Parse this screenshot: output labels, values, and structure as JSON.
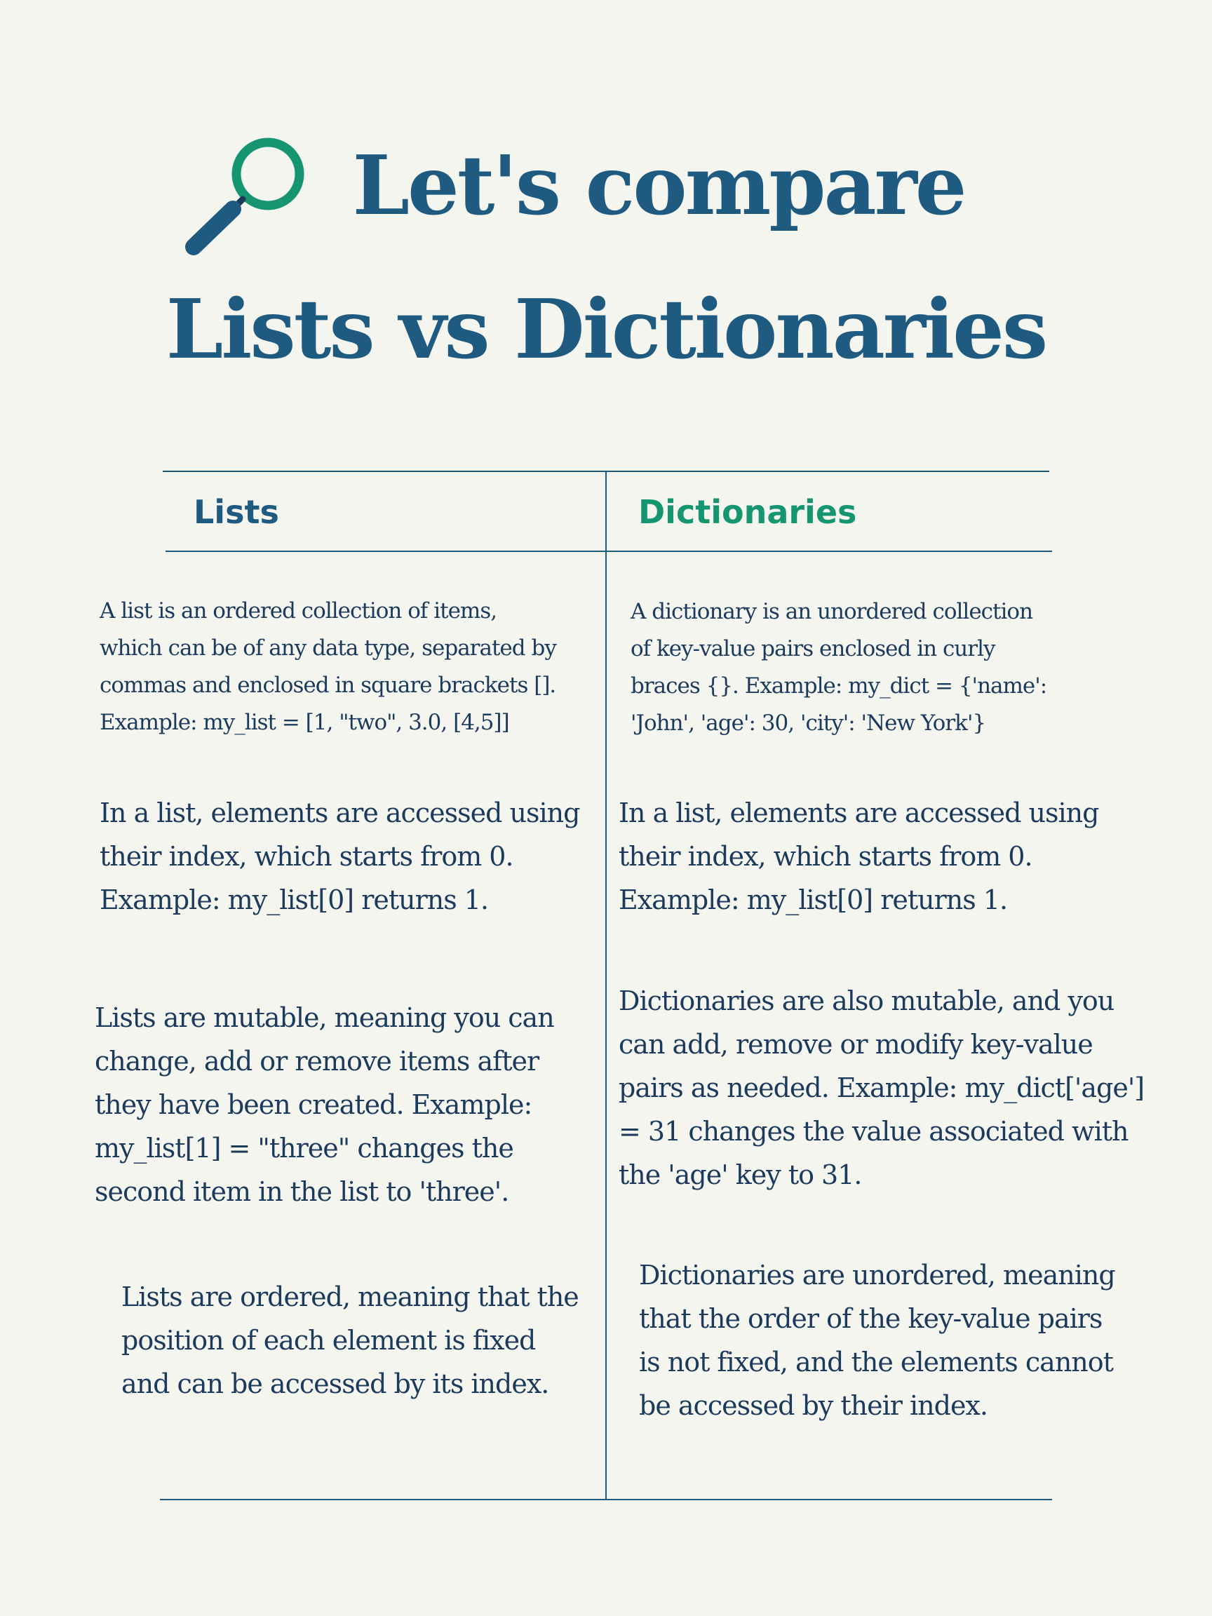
{
  "title": {
    "line1": "Let's compare",
    "line2": "Lists vs Dictionaries"
  },
  "icon": "magnifying-glass-icon",
  "colors": {
    "background": "#f5f5f0",
    "primary": "#1f5a80",
    "accent": "#159670",
    "text": "#1c3a5c"
  },
  "headers": {
    "lists": "Lists",
    "dictionaries": "Dictionaries"
  },
  "lists": {
    "p1": "A list is an ordered collection of items,\nwhich can be of any data type, separated by\ncommas and enclosed in square brackets [].\nExample: my_list = [1, \"two\", 3.0, [4,5]]",
    "p2": "In a list, elements are accessed using\ntheir index, which starts from 0.\nExample: my_list[0] returns 1.",
    "p3": "Lists are mutable, meaning you can\nchange, add or remove items after\nthey have been created. Example:\nmy_list[1] = \"three\" changes the\nsecond item in the list to 'three'.",
    "p4": "Lists are ordered, meaning that the\nposition of each element is fixed\nand can be accessed by its index."
  },
  "dictionaries": {
    "p1": "A dictionary is an unordered collection\nof key-value pairs enclosed in curly\nbraces {}. Example: my_dict = {'name':\n'John', 'age': 30, 'city': 'New York'}",
    "p2": "In a list, elements are accessed using\ntheir index, which starts from 0.\nExample: my_list[0] returns 1.",
    "p3": "Dictionaries are also mutable, and you\ncan add, remove or modify key-value\npairs as needed. Example: my_dict['age']\n= 31 changes the value associated with\nthe 'age' key to 31.",
    "p4": "Dictionaries are unordered, meaning\nthat the order of the key-value pairs\nis not fixed, and the elements cannot\nbe accessed by their index."
  }
}
